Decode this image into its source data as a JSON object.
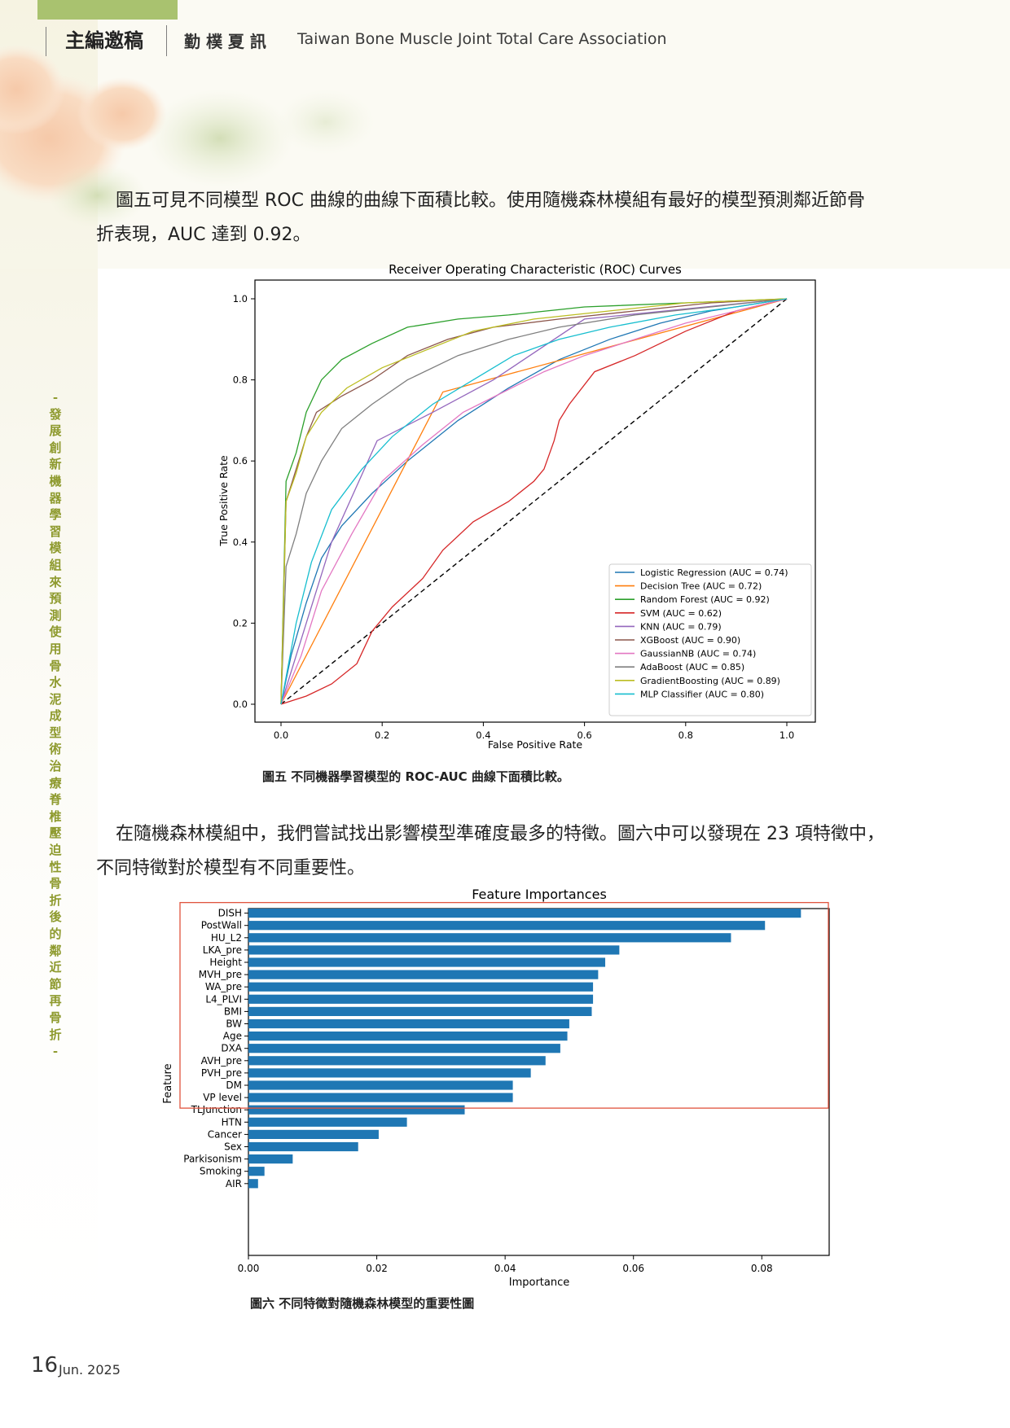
{
  "header": {
    "column": "主編邀稿",
    "newsletter": "勤 樸 夏 訊",
    "association": "Taiwan Bone Muscle Joint Total Care Association"
  },
  "side_title": "- 發展創新機器學習模組來預測使用骨水泥成型術治療脊椎壓迫性骨折後的鄰近節再骨折 -",
  "para1_line1": "圖五可見不同模型 ROC 曲線的曲線下面積比較。使用隨機森林模組有最好的模型預測鄰近節骨",
  "para1_line2": "折表現，AUC 達到 0.92。",
  "para2_line1": "在隨機森林模組中，我們嘗試找出影響模型準確度最多的特徵。圖六中可以發現在 23 項特徵中，",
  "para2_line2": "不同特徵對於模型有不同重要性。",
  "caption1": "圖五 不同機器學習模型的 ROC-AUC 曲線下面積比較。",
  "caption2": "圖六 不同特徵對隨機森林模型的重要性圖",
  "footer": {
    "page": "16",
    "date": "Jun. 2025"
  },
  "chart_data": [
    {
      "type": "line",
      "title": "Receiver Operating Characteristic (ROC) Curves",
      "xlabel": "False Positive Rate",
      "ylabel": "True Positive Rate",
      "xlim": [
        0,
        1
      ],
      "ylim": [
        0,
        1
      ],
      "xticks": [
        "0.0",
        "0.2",
        "0.4",
        "0.6",
        "0.8",
        "1.0"
      ],
      "yticks": [
        "0.0",
        "0.2",
        "0.4",
        "0.6",
        "0.8",
        "1.0"
      ],
      "legend_position": "lower-right",
      "diagonal": "dashed black chance line",
      "series": [
        {
          "name": "Logistic Regression (AUC = 0.74)",
          "color": "#1f77b4",
          "points": [
            [
              0,
              0
            ],
            [
              0.02,
              0.12
            ],
            [
              0.05,
              0.25
            ],
            [
              0.08,
              0.36
            ],
            [
              0.12,
              0.44
            ],
            [
              0.18,
              0.52
            ],
            [
              0.25,
              0.6
            ],
            [
              0.35,
              0.7
            ],
            [
              0.45,
              0.78
            ],
            [
              0.55,
              0.85
            ],
            [
              0.65,
              0.9
            ],
            [
              0.75,
              0.94
            ],
            [
              0.85,
              0.97
            ],
            [
              1,
              1
            ]
          ]
        },
        {
          "name": "Decision Tree (AUC = 0.72)",
          "color": "#ff7f0e",
          "points": [
            [
              0,
              0
            ],
            [
              0.32,
              0.77
            ],
            [
              1,
              1
            ]
          ]
        },
        {
          "name": "Random Forest (AUC = 0.92)",
          "color": "#2ca02c",
          "points": [
            [
              0,
              0
            ],
            [
              0.01,
              0.55
            ],
            [
              0.03,
              0.62
            ],
            [
              0.05,
              0.72
            ],
            [
              0.08,
              0.8
            ],
            [
              0.12,
              0.85
            ],
            [
              0.18,
              0.89
            ],
            [
              0.25,
              0.93
            ],
            [
              0.35,
              0.95
            ],
            [
              0.45,
              0.96
            ],
            [
              0.6,
              0.98
            ],
            [
              0.8,
              0.99
            ],
            [
              1,
              1
            ]
          ]
        },
        {
          "name": "SVM (AUC = 0.62)",
          "color": "#d62728",
          "points": [
            [
              0,
              0
            ],
            [
              0.05,
              0.02
            ],
            [
              0.1,
              0.05
            ],
            [
              0.15,
              0.1
            ],
            [
              0.18,
              0.18
            ],
            [
              0.22,
              0.24
            ],
            [
              0.28,
              0.31
            ],
            [
              0.32,
              0.38
            ],
            [
              0.38,
              0.45
            ],
            [
              0.45,
              0.5
            ],
            [
              0.5,
              0.55
            ],
            [
              0.52,
              0.58
            ],
            [
              0.54,
              0.65
            ],
            [
              0.55,
              0.7
            ],
            [
              0.57,
              0.74
            ],
            [
              0.62,
              0.82
            ],
            [
              0.7,
              0.86
            ],
            [
              0.8,
              0.92
            ],
            [
              0.9,
              0.97
            ],
            [
              1,
              1
            ]
          ]
        },
        {
          "name": "KNN (AUC = 0.79)",
          "color": "#9467bd",
          "points": [
            [
              0,
              0
            ],
            [
              0.05,
              0.2
            ],
            [
              0.1,
              0.4
            ],
            [
              0.19,
              0.65
            ],
            [
              0.3,
              0.72
            ],
            [
              0.42,
              0.8
            ],
            [
              0.6,
              0.95
            ],
            [
              1,
              1
            ]
          ]
        },
        {
          "name": "XGBoost (AUC = 0.90)",
          "color": "#8c564b",
          "points": [
            [
              0,
              0
            ],
            [
              0.01,
              0.5
            ],
            [
              0.03,
              0.58
            ],
            [
              0.05,
              0.66
            ],
            [
              0.07,
              0.72
            ],
            [
              0.12,
              0.76
            ],
            [
              0.18,
              0.8
            ],
            [
              0.25,
              0.86
            ],
            [
              0.33,
              0.9
            ],
            [
              0.42,
              0.93
            ],
            [
              0.55,
              0.95
            ],
            [
              0.7,
              0.97
            ],
            [
              0.85,
              0.99
            ],
            [
              1,
              1
            ]
          ]
        },
        {
          "name": "GaussianNB (AUC = 0.74)",
          "color": "#e377c2",
          "points": [
            [
              0,
              0
            ],
            [
              0.04,
              0.12
            ],
            [
              0.08,
              0.28
            ],
            [
              0.14,
              0.42
            ],
            [
              0.2,
              0.55
            ],
            [
              0.28,
              0.64
            ],
            [
              0.36,
              0.72
            ],
            [
              0.44,
              0.77
            ],
            [
              0.52,
              0.82
            ],
            [
              0.6,
              0.86
            ],
            [
              0.7,
              0.9
            ],
            [
              0.8,
              0.94
            ],
            [
              0.9,
              0.97
            ],
            [
              1,
              1
            ]
          ]
        },
        {
          "name": "AdaBoost (AUC = 0.85)",
          "color": "#7f7f7f",
          "points": [
            [
              0,
              0
            ],
            [
              0.01,
              0.34
            ],
            [
              0.03,
              0.42
            ],
            [
              0.05,
              0.52
            ],
            [
              0.08,
              0.6
            ],
            [
              0.12,
              0.68
            ],
            [
              0.18,
              0.74
            ],
            [
              0.25,
              0.8
            ],
            [
              0.35,
              0.86
            ],
            [
              0.45,
              0.9
            ],
            [
              0.55,
              0.93
            ],
            [
              0.7,
              0.96
            ],
            [
              0.85,
              0.98
            ],
            [
              1,
              1
            ]
          ]
        },
        {
          "name": "GradientBoosting (AUC = 0.89)",
          "color": "#bcbd22",
          "points": [
            [
              0,
              0
            ],
            [
              0.01,
              0.5
            ],
            [
              0.03,
              0.57
            ],
            [
              0.05,
              0.66
            ],
            [
              0.08,
              0.72
            ],
            [
              0.13,
              0.78
            ],
            [
              0.2,
              0.83
            ],
            [
              0.28,
              0.87
            ],
            [
              0.38,
              0.92
            ],
            [
              0.5,
              0.95
            ],
            [
              0.65,
              0.97
            ],
            [
              0.8,
              0.99
            ],
            [
              1,
              1
            ]
          ]
        },
        {
          "name": "MLP Classifier (AUC = 0.80)",
          "color": "#17becf",
          "points": [
            [
              0,
              0
            ],
            [
              0.03,
              0.2
            ],
            [
              0.06,
              0.35
            ],
            [
              0.1,
              0.48
            ],
            [
              0.16,
              0.58
            ],
            [
              0.22,
              0.66
            ],
            [
              0.3,
              0.74
            ],
            [
              0.38,
              0.8
            ],
            [
              0.46,
              0.86
            ],
            [
              0.55,
              0.9
            ],
            [
              0.65,
              0.93
            ],
            [
              0.78,
              0.96
            ],
            [
              0.9,
              0.98
            ],
            [
              1,
              1
            ]
          ]
        }
      ]
    },
    {
      "type": "bar",
      "orientation": "horizontal",
      "title": "Feature Importances",
      "xlabel": "Importance",
      "ylabel": "Feature",
      "xlim": [
        0,
        0.0905
      ],
      "xticks": [
        "0.00",
        "0.02",
        "0.04",
        "0.06",
        "0.08"
      ],
      "bar_color": "#1f77b4",
      "highlight": {
        "from": "DISH",
        "to": "VP level",
        "color": "#e0533d"
      },
      "categories": [
        "DISH",
        "PostWall",
        "HU_L2",
        "LKA_pre",
        "Height",
        "MVH_pre",
        "WA_pre",
        "L4_PLVI",
        "BMI",
        "BW",
        "Age",
        "DXA",
        "AVH_pre",
        "PVH_pre",
        "DM",
        "VP level",
        "TLJunction",
        "HTN",
        "Cancer",
        "Sex",
        "Parkisonism",
        "Smoking",
        "AIR"
      ],
      "values": [
        0.0861,
        0.0805,
        0.0752,
        0.0578,
        0.0556,
        0.0545,
        0.0537,
        0.0537,
        0.0535,
        0.05,
        0.0497,
        0.0486,
        0.0463,
        0.044,
        0.0412,
        0.0412,
        0.0337,
        0.0247,
        0.0203,
        0.0171,
        0.0069,
        0.0025,
        0.0015
      ]
    }
  ]
}
